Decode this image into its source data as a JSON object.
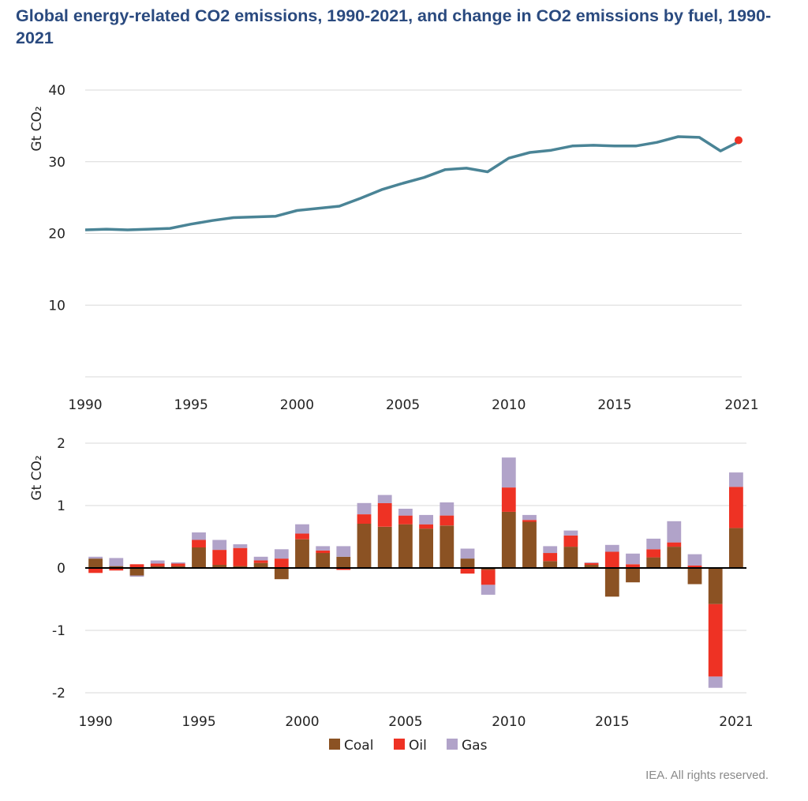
{
  "title": "Global energy-related CO2 emissions, 1990-2021, and change in CO2 emissions by fuel, 1990-2021",
  "credit": "IEA. All rights reserved.",
  "chart_data": [
    {
      "type": "line",
      "ylabel": "Gt CO₂",
      "ylim": [
        0,
        40
      ],
      "yticks": [
        "10",
        "20",
        "30",
        "40"
      ],
      "xticks": [
        "1990",
        "1995",
        "2000",
        "2005",
        "2010",
        "2015",
        "2021"
      ],
      "grid": true,
      "colors": {
        "line": "#4a8496",
        "highlight": "#ee3224",
        "grid": "#d9d9d9"
      },
      "series": [
        {
          "x": [
            1990,
            1991,
            1992,
            1993,
            1994,
            1995,
            1996,
            1997,
            1998,
            1999,
            2000,
            2001,
            2002,
            2003,
            2004,
            2005,
            2006,
            2007,
            2008,
            2009,
            2010,
            2011,
            2012,
            2013,
            2014,
            2015,
            2016,
            2017,
            2018,
            2019,
            2020,
            2021
          ],
          "values": [
            20.5,
            20.6,
            20.5,
            20.6,
            20.7,
            21.3,
            21.8,
            22.2,
            22.3,
            22.4,
            23.2,
            23.5,
            23.8,
            24.9,
            26.1,
            27.0,
            27.8,
            28.9,
            29.1,
            28.6,
            30.5,
            31.3,
            31.6,
            32.2,
            32.3,
            32.2,
            32.2,
            32.7,
            33.5,
            33.4,
            31.5,
            33.0
          ]
        }
      ],
      "highlight": {
        "x": 2021,
        "value": 33.0
      }
    },
    {
      "type": "bar",
      "stacked": true,
      "ylabel": "Gt CO₂",
      "ylim": [
        -2,
        2
      ],
      "yticks": [
        "-2",
        "-1",
        "0",
        "1",
        "2"
      ],
      "xticks": [
        "1990",
        "1995",
        "2000",
        "2005",
        "2010",
        "2015",
        "2021"
      ],
      "grid": true,
      "legend_position": "bottom",
      "categories": [
        1990,
        1991,
        1992,
        1993,
        1994,
        1995,
        1996,
        1997,
        1998,
        1999,
        2000,
        2001,
        2002,
        2003,
        2004,
        2005,
        2006,
        2007,
        2008,
        2009,
        2010,
        2011,
        2012,
        2013,
        2014,
        2015,
        2016,
        2017,
        2018,
        2019,
        2020,
        2021
      ],
      "series": [
        {
          "name": "Coal",
          "color": "#8b5223",
          "values": [
            0.15,
            0.03,
            -0.12,
            0.03,
            0.03,
            0.33,
            0.05,
            0.03,
            0.08,
            -0.18,
            0.46,
            0.24,
            0.18,
            0.71,
            0.66,
            0.7,
            0.63,
            0.68,
            0.15,
            -0.03,
            0.9,
            0.74,
            0.11,
            0.34,
            0.05,
            -0.46,
            -0.23,
            0.17,
            0.34,
            -0.26,
            -0.58,
            0.64
          ]
        },
        {
          "name": "Oil",
          "color": "#ee3224",
          "values": [
            -0.08,
            -0.04,
            0.06,
            0.04,
            0.04,
            0.12,
            0.24,
            0.29,
            0.04,
            0.15,
            0.09,
            0.04,
            -0.03,
            0.15,
            0.38,
            0.14,
            0.07,
            0.16,
            -0.09,
            -0.24,
            0.39,
            0.03,
            0.13,
            0.18,
            0.03,
            0.26,
            0.06,
            0.13,
            0.07,
            0.04,
            -1.16,
            0.66
          ]
        },
        {
          "name": "Gas",
          "color": "#b1a3c9",
          "values": [
            0.03,
            0.13,
            -0.02,
            0.05,
            0.02,
            0.12,
            0.16,
            0.06,
            0.06,
            0.15,
            0.15,
            0.07,
            0.17,
            0.18,
            0.13,
            0.11,
            0.15,
            0.21,
            0.16,
            -0.16,
            0.48,
            0.08,
            0.11,
            0.08,
            0.01,
            0.11,
            0.17,
            0.17,
            0.34,
            0.18,
            -0.18,
            0.23
          ]
        }
      ]
    }
  ]
}
